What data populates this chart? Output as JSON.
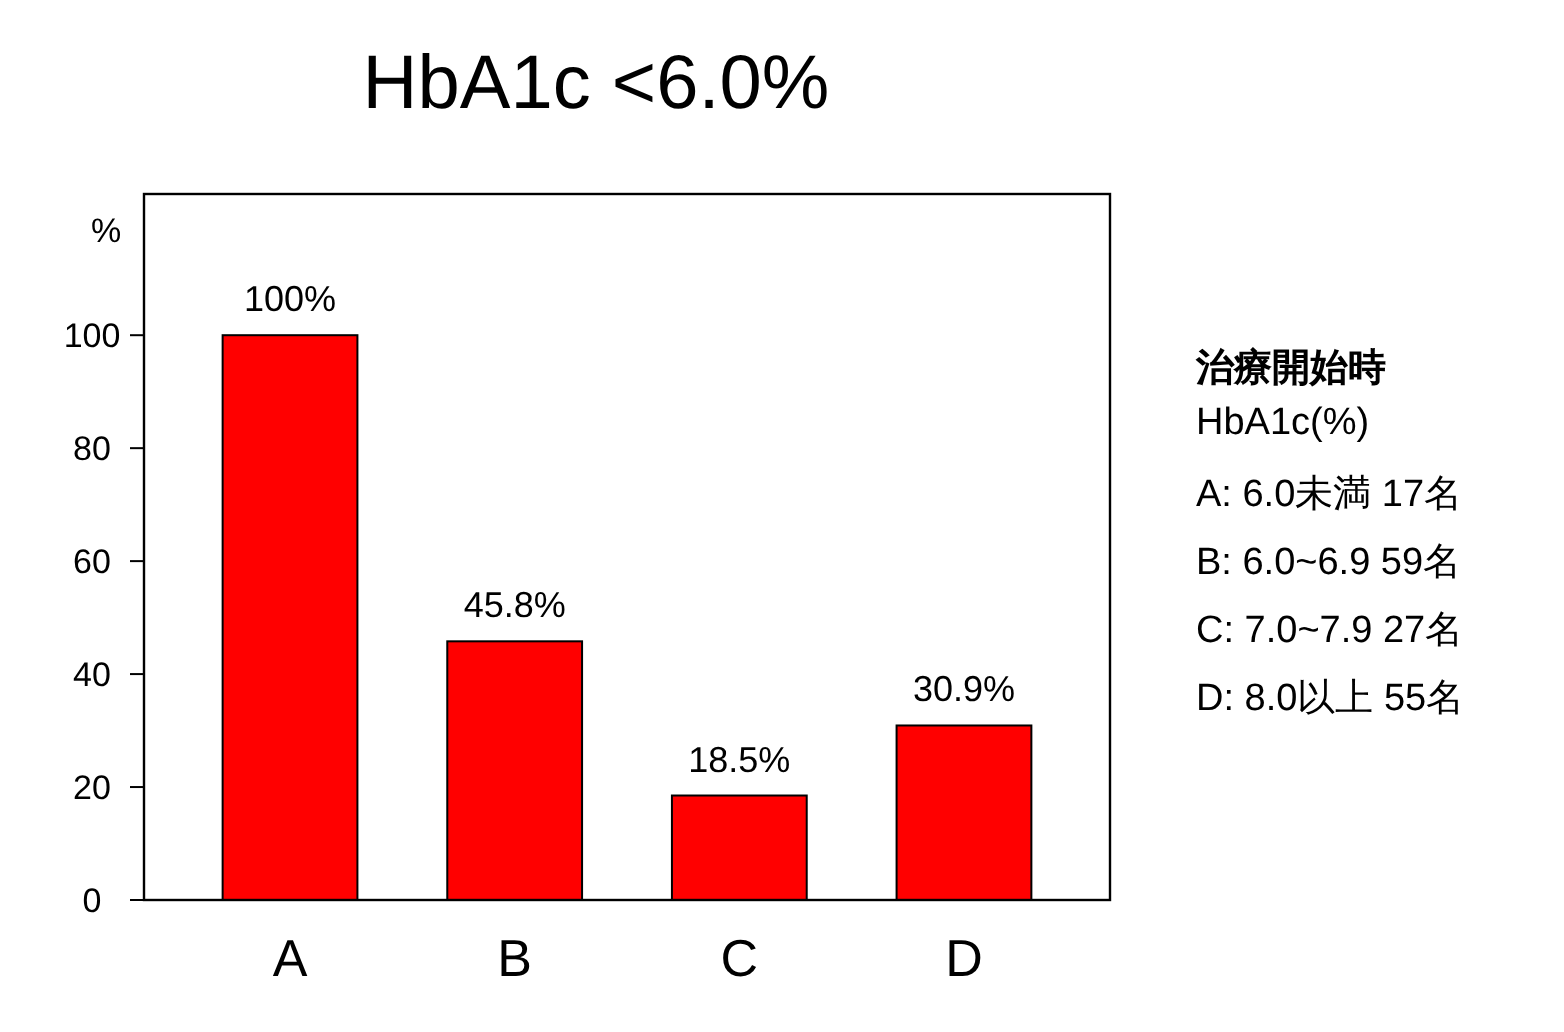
{
  "chart_data": {
    "type": "bar",
    "title": "HbA1c <6.0%",
    "ylabel": "%",
    "categories": [
      "A",
      "B",
      "C",
      "D"
    ],
    "values": [
      100,
      45.8,
      18.5,
      30.9
    ],
    "value_labels": [
      "100%",
      "45.8%",
      "18.5%",
      "30.9%"
    ],
    "color": "#ff0000",
    "ylim": [
      0,
      125
    ],
    "yticks": [
      0,
      20,
      40,
      60,
      80,
      100
    ],
    "grid": false,
    "annotations": [
      "治療開始時",
      "HbA1c(%)",
      "A: 6.0未満 17名",
      "B: 6.0~6.9 59名",
      "C: 7.0~7.9 27名",
      "D: 8.0以上 55名"
    ]
  }
}
